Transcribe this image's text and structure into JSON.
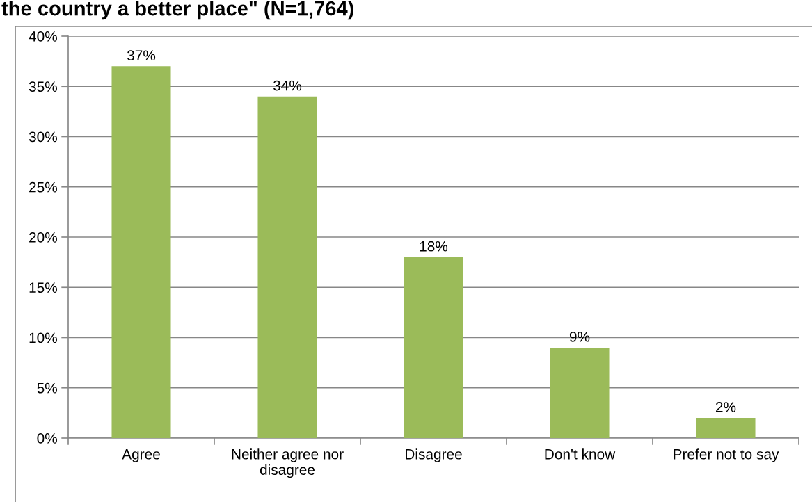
{
  "chart_data": {
    "type": "bar",
    "title": "the country a better place\" (N=1,764)",
    "categories": [
      "Agree",
      "Neither agree nor\ndisagree",
      "Disagree",
      "Don't know",
      "Prefer not to say"
    ],
    "values": [
      37,
      34,
      18,
      9,
      2
    ],
    "value_labels": [
      "37%",
      "34%",
      "18%",
      "9%",
      "2%"
    ],
    "color": "#9bbb59",
    "ylim": [
      0,
      40
    ],
    "yticks": [
      {
        "value": 0,
        "label": "0%"
      },
      {
        "value": 5,
        "label": "5%"
      },
      {
        "value": 10,
        "label": "10%"
      },
      {
        "value": 15,
        "label": "15%"
      },
      {
        "value": 20,
        "label": "20%"
      },
      {
        "value": 25,
        "label": "25%"
      },
      {
        "value": 30,
        "label": "30%"
      },
      {
        "value": 35,
        "label": "35%"
      },
      {
        "value": 40,
        "label": "40%"
      }
    ],
    "grid": "y",
    "legend": false
  }
}
